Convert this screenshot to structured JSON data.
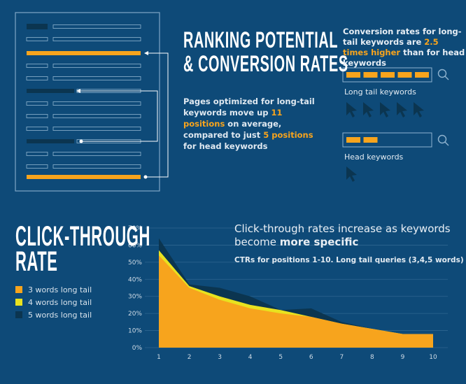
{
  "ranking": {
    "title_line1": "RANKING POTENTIAL",
    "title_line2": "& CONVERSION RATES",
    "desc_pre": "Pages optimized for long-tail keywords move up ",
    "desc_hl1": "11 positions",
    "desc_mid": " on average, compared to just ",
    "desc_hl2": "5 positions",
    "desc_post": " for head keywords"
  },
  "conversion": {
    "text_pre": "Conversion rates for long-tail keywords are ",
    "text_hl": "2.5 times higher",
    "text_post": " than for head keywords",
    "long_tail_label": "Long tail keywords",
    "head_label": "Head keywords",
    "long_tail_blocks": 5,
    "head_blocks": 2,
    "long_tail_cursors": 5,
    "head_cursors": 1
  },
  "ctr": {
    "title_line1": "CLICK-THROUGH",
    "title_line2": "RATE",
    "subtitle_pre": "Click-through rates increase as keywords become ",
    "subtitle_hl": "more specific",
    "subtitle2": "CTRs for positions 1-10. Long tail queries (3,4,5 words)"
  },
  "colors": {
    "background": "#0e4a78",
    "orange": "#f7a41d",
    "yellow": "#e8e21f",
    "dark_blue": "#0b3550",
    "light_line": "#8fb3cf"
  },
  "chart_data": {
    "type": "area",
    "x": [
      1,
      2,
      3,
      4,
      5,
      6,
      7,
      8,
      9,
      10
    ],
    "ylim": [
      0,
      70
    ],
    "yticks": [
      "0%",
      "10%",
      "20%",
      "30%",
      "40%",
      "50%",
      "60%",
      "70%"
    ],
    "ytick_values": [
      0,
      10,
      20,
      30,
      40,
      50,
      60,
      70
    ],
    "series": [
      {
        "name": "5 words long tail",
        "color": "#0b3550",
        "values": [
          64,
          37,
          35,
          30,
          22,
          23,
          15,
          11,
          5,
          8
        ]
      },
      {
        "name": "4 words long tail",
        "color": "#e8e21f",
        "values": [
          57,
          36,
          30,
          25,
          22,
          18,
          14,
          11,
          8,
          7
        ]
      },
      {
        "name": "3 words long tail",
        "color": "#f7a41d",
        "values": [
          54,
          35,
          28,
          23,
          20,
          18,
          14,
          11,
          8,
          8
        ]
      }
    ],
    "legend_order": [
      "3 words long tail",
      "4 words long tail",
      "5 words long tail"
    ],
    "grid": true,
    "legend_position": "left"
  }
}
